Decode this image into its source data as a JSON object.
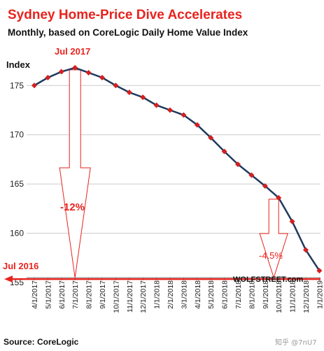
{
  "chart_data": {
    "type": "line",
    "title": "Sydney Home-Price Dive Accelerates",
    "subtitle": "Monthly, based on CoreLogic Daily Home Value Index",
    "ylabel": "Index",
    "xlabel": "",
    "ylim": [
      155.5,
      178
    ],
    "yticks": [
      155,
      160,
      165,
      170,
      175
    ],
    "grid": true,
    "categories": [
      "4/1/2017",
      "5/1/2017",
      "6/1/2017",
      "7/1/2017",
      "8/1/2017",
      "9/1/2017",
      "10/1/2017",
      "11/1/2017",
      "12/1/2017",
      "1/1/2018",
      "2/1/2018",
      "3/1/2018",
      "4/1/2018",
      "5/1/2018",
      "6/1/2018",
      "7/1/2018",
      "8/1/2018",
      "9/1/2018",
      "10/1/2018",
      "11/1/2018",
      "12/1/2018",
      "1/1/2019"
    ],
    "series": [
      {
        "values": [
          175.0,
          175.8,
          176.4,
          176.8,
          176.3,
          175.8,
          175.0,
          174.3,
          173.8,
          173.0,
          172.5,
          172.0,
          171.0,
          169.7,
          168.3,
          167.0,
          165.9,
          164.8,
          163.6,
          161.2,
          158.3,
          156.2
        ]
      }
    ],
    "annotations": {
      "peak_label": "Jul 2017",
      "decline_total": "-12%",
      "decline_recent": "-4.5%",
      "baseline_label": "Jul 2016",
      "baseline_value": 156.2
    },
    "colors": {
      "line": "#1f3a5f",
      "marker": "#d42020",
      "accent": "#e8231e",
      "grid": "#cccccc"
    }
  },
  "footer": {
    "source": "Source: CoreLogic",
    "brand": "WOLFSTREET.com",
    "watermark": "知乎 @7nU7"
  }
}
